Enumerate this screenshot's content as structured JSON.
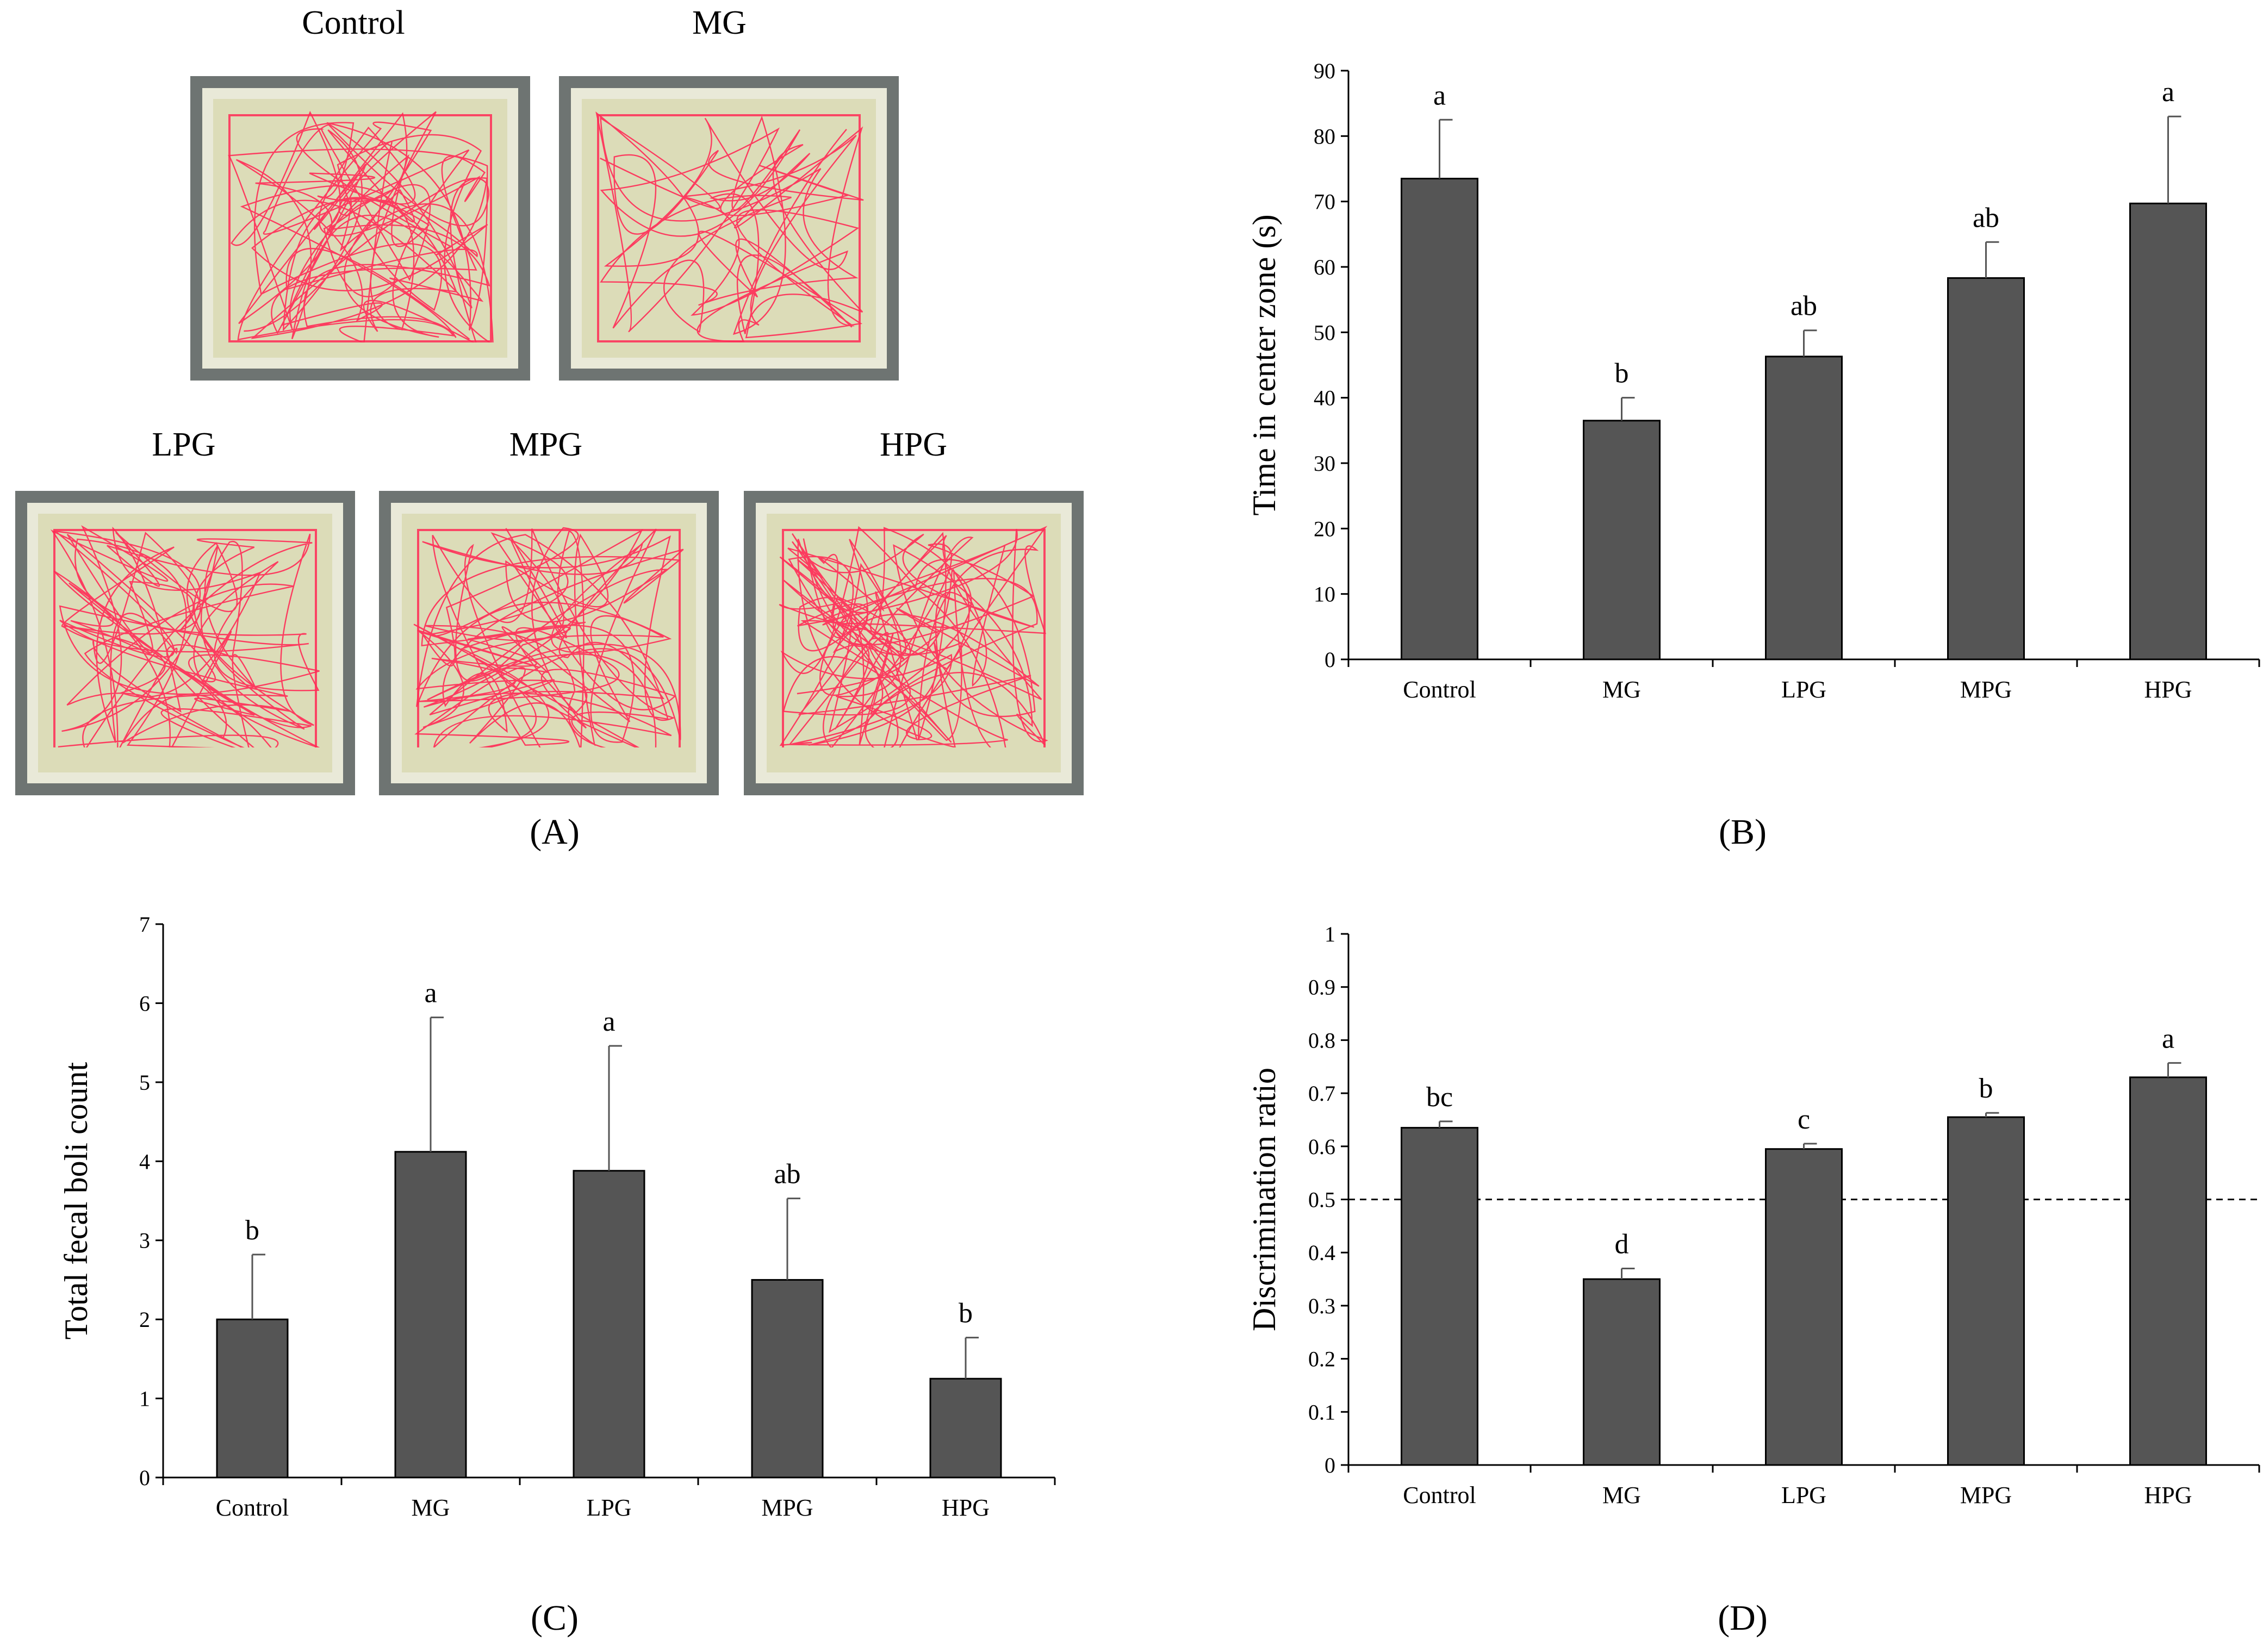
{
  "panels": {
    "A": {
      "label": "(A)",
      "arena_titles": [
        "Control",
        "MG",
        "LPG",
        "MPG",
        "HPG"
      ]
    },
    "B": {
      "label": "(B)"
    },
    "C": {
      "label": "(C)"
    },
    "D": {
      "label": "(D)"
    }
  },
  "chart_data": [
    {
      "id": "B",
      "type": "bar",
      "categories": [
        "Control",
        "MG",
        "LPG",
        "MPG",
        "HPG"
      ],
      "values": [
        73.5,
        36.5,
        46.3,
        58.3,
        69.7
      ],
      "errors": [
        9.0,
        3.5,
        4.0,
        5.5,
        13.3
      ],
      "significance": [
        "a",
        "b",
        "ab",
        "ab",
        "a"
      ],
      "ylabel": "Time in center zone (s)",
      "ylim": [
        0,
        90
      ],
      "yticks": [
        "0",
        "10",
        "20",
        "30",
        "40",
        "50",
        "60",
        "70",
        "80",
        "90"
      ],
      "color": "#555555"
    },
    {
      "id": "C",
      "type": "bar",
      "categories": [
        "Control",
        "MG",
        "LPG",
        "MPG",
        "HPG"
      ],
      "values": [
        2.0,
        4.12,
        3.88,
        2.5,
        1.25
      ],
      "errors": [
        0.82,
        1.7,
        1.58,
        1.03,
        0.52
      ],
      "significance": [
        "b",
        "a",
        "a",
        "ab",
        "b"
      ],
      "ylabel": "Total fecal boli count",
      "ylim": [
        0,
        7
      ],
      "yticks": [
        "0",
        "1",
        "2",
        "3",
        "4",
        "5",
        "6",
        "7"
      ],
      "color": "#555555"
    },
    {
      "id": "D",
      "type": "bar",
      "categories": [
        "Control",
        "MG",
        "LPG",
        "MPG",
        "HPG"
      ],
      "values": [
        0.635,
        0.35,
        0.595,
        0.655,
        0.73
      ],
      "errors": [
        0.012,
        0.02,
        0.01,
        0.008,
        0.027
      ],
      "significance": [
        "bc",
        "d",
        "c",
        "b",
        "a"
      ],
      "ylabel": "Discrimination ratio",
      "ylim": [
        0,
        1
      ],
      "yticks": [
        "0",
        "0.1",
        "0.2",
        "0.3",
        "0.4",
        "0.5",
        "0.6",
        "0.7",
        "0.8",
        "0.9",
        "1"
      ],
      "reference_line": 0.5,
      "color": "#555555"
    }
  ]
}
